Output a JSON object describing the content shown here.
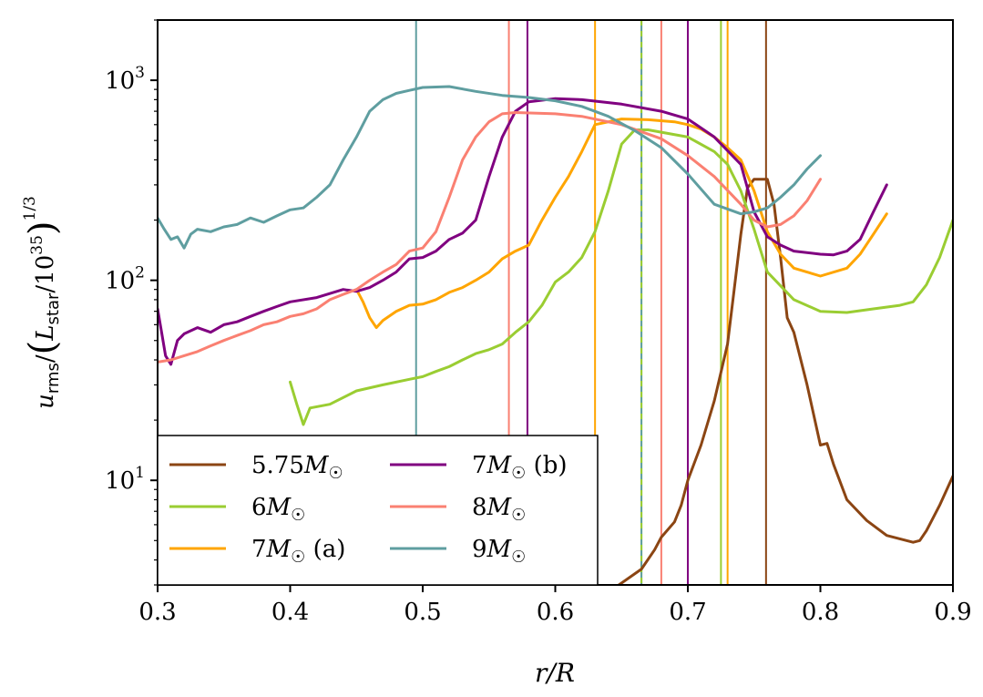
{
  "chart_data": {
    "type": "line",
    "title": "",
    "xlabel": "r/R",
    "ylabel": "u_rms/(L_star/10^35)^(1/3)",
    "xlim": [
      0.3,
      0.9
    ],
    "ylim": [
      3.0,
      2000
    ],
    "yscale": "log",
    "grid": false,
    "legend_position": "lower-left",
    "x_ticks": [
      0.3,
      0.4,
      0.5,
      0.6,
      0.7,
      0.8,
      0.9
    ],
    "x_tick_labels": [
      "0.3",
      "0.4",
      "0.5",
      "0.6",
      "0.7",
      "0.8",
      "0.9"
    ],
    "y_ticks": [
      10,
      100,
      1000
    ],
    "y_tick_labels": [
      "10",
      "10",
      "10"
    ],
    "y_tick_exponents": [
      "1",
      "2",
      "3"
    ],
    "series": [
      {
        "name": "5.75M☉",
        "label_main": "5.75",
        "color": "#8B4513",
        "boundaries": [
          0.759
        ],
        "x": [
          0.648,
          0.665,
          0.675,
          0.68,
          0.69,
          0.695,
          0.7,
          0.71,
          0.72,
          0.73,
          0.735,
          0.74,
          0.745,
          0.75,
          0.755,
          0.76,
          0.765,
          0.77,
          0.775,
          0.78,
          0.79,
          0.8,
          0.805,
          0.81,
          0.82,
          0.835,
          0.85,
          0.86,
          0.87,
          0.875,
          0.88,
          0.89,
          0.9
        ],
        "y": [
          3.0,
          3.6,
          4.5,
          5.2,
          6.2,
          7.5,
          10,
          15,
          25,
          48,
          90,
          170,
          290,
          320,
          320,
          320,
          240,
          130,
          65,
          55,
          30,
          15,
          15.3,
          12,
          8.0,
          6.3,
          5.3,
          5.1,
          4.9,
          5.0,
          5.6,
          7.5,
          10.5
        ]
      },
      {
        "name": "6M☉",
        "label_main": "6",
        "color": "#9ACD32",
        "boundaries": [
          0.665,
          0.725
        ],
        "x": [
          0.4,
          0.405,
          0.41,
          0.415,
          0.43,
          0.45,
          0.47,
          0.49,
          0.5,
          0.51,
          0.52,
          0.53,
          0.54,
          0.55,
          0.56,
          0.57,
          0.58,
          0.59,
          0.6,
          0.61,
          0.62,
          0.63,
          0.64,
          0.65,
          0.66,
          0.67,
          0.68,
          0.7,
          0.72,
          0.73,
          0.74,
          0.75,
          0.76,
          0.78,
          0.8,
          0.82,
          0.84,
          0.86,
          0.87,
          0.88,
          0.89,
          0.9
        ],
        "y": [
          31,
          24,
          19,
          23,
          24,
          28,
          30,
          32,
          33,
          35,
          37,
          40,
          43,
          45,
          48,
          55,
          62,
          75,
          98,
          110,
          130,
          175,
          280,
          480,
          565,
          565,
          550,
          520,
          440,
          380,
          280,
          180,
          110,
          80,
          70,
          69,
          72,
          75,
          78,
          95,
          130,
          200
        ]
      },
      {
        "name": "7M☉ (a)",
        "label_main": "7",
        "label_suffix": " (a)",
        "color": "#FFA500",
        "boundaries": [
          0.63,
          0.73
        ],
        "x": [
          0.45,
          0.455,
          0.46,
          0.465,
          0.47,
          0.48,
          0.49,
          0.5,
          0.51,
          0.52,
          0.53,
          0.54,
          0.55,
          0.56,
          0.57,
          0.58,
          0.59,
          0.6,
          0.61,
          0.62,
          0.63,
          0.65,
          0.67,
          0.69,
          0.7,
          0.71,
          0.72,
          0.73,
          0.74,
          0.75,
          0.76,
          0.77,
          0.78,
          0.8,
          0.82,
          0.83,
          0.84,
          0.85
        ],
        "y": [
          90,
          78,
          65,
          58,
          63,
          70,
          75,
          76,
          80,
          87,
          92,
          100,
          110,
          128,
          140,
          150,
          200,
          260,
          330,
          440,
          600,
          640,
          635,
          620,
          600,
          570,
          520,
          460,
          400,
          280,
          175,
          135,
          115,
          105,
          115,
          135,
          170,
          215
        ]
      },
      {
        "name": "7M☉ (b)",
        "label_main": "7",
        "label_suffix": " (b)",
        "color": "#800080",
        "boundaries": [
          0.579,
          0.7
        ],
        "x": [
          0.3,
          0.303,
          0.306,
          0.31,
          0.315,
          0.32,
          0.33,
          0.34,
          0.35,
          0.36,
          0.37,
          0.38,
          0.39,
          0.4,
          0.42,
          0.44,
          0.45,
          0.46,
          0.47,
          0.48,
          0.49,
          0.5,
          0.51,
          0.52,
          0.53,
          0.54,
          0.55,
          0.56,
          0.57,
          0.58,
          0.6,
          0.62,
          0.65,
          0.68,
          0.7,
          0.72,
          0.74,
          0.75,
          0.76,
          0.77,
          0.78,
          0.8,
          0.81,
          0.82,
          0.83,
          0.84,
          0.85
        ],
        "y": [
          72,
          55,
          42,
          38,
          50,
          54,
          58,
          55,
          60,
          62,
          66,
          70,
          74,
          78,
          82,
          90,
          88,
          92,
          100,
          110,
          128,
          130,
          140,
          160,
          172,
          200,
          330,
          520,
          700,
          780,
          810,
          800,
          760,
          700,
          640,
          520,
          380,
          220,
          165,
          150,
          140,
          135,
          134,
          140,
          160,
          220,
          300
        ]
      },
      {
        "name": "8M☉",
        "label_main": "8",
        "color": "#FA8072",
        "boundaries": [
          0.565,
          0.68
        ],
        "x": [
          0.3,
          0.31,
          0.32,
          0.33,
          0.34,
          0.35,
          0.36,
          0.37,
          0.38,
          0.39,
          0.4,
          0.41,
          0.42,
          0.43,
          0.44,
          0.45,
          0.46,
          0.47,
          0.48,
          0.49,
          0.5,
          0.51,
          0.52,
          0.53,
          0.54,
          0.55,
          0.56,
          0.57,
          0.6,
          0.62,
          0.65,
          0.68,
          0.7,
          0.72,
          0.74,
          0.75,
          0.76,
          0.77,
          0.78,
          0.79,
          0.8
        ],
        "y": [
          39,
          40,
          42,
          44,
          47,
          50,
          53,
          56,
          60,
          62,
          66,
          68,
          72,
          80,
          85,
          90,
          100,
          110,
          120,
          140,
          145,
          175,
          260,
          400,
          520,
          620,
          680,
          690,
          680,
          660,
          600,
          510,
          420,
          330,
          240,
          200,
          185,
          190,
          210,
          250,
          320
        ]
      },
      {
        "name": "9M☉",
        "label_main": "9",
        "color": "#5F9EA0",
        "boundaries": [
          0.495,
          0.665
        ],
        "x": [
          0.3,
          0.305,
          0.31,
          0.315,
          0.32,
          0.325,
          0.33,
          0.34,
          0.35,
          0.36,
          0.37,
          0.38,
          0.39,
          0.4,
          0.41,
          0.42,
          0.43,
          0.44,
          0.45,
          0.46,
          0.47,
          0.48,
          0.49,
          0.5,
          0.52,
          0.54,
          0.56,
          0.58,
          0.6,
          0.62,
          0.64,
          0.66,
          0.68,
          0.7,
          0.72,
          0.74,
          0.75,
          0.76,
          0.77,
          0.78,
          0.79,
          0.8
        ],
        "y": [
          205,
          180,
          160,
          165,
          145,
          170,
          180,
          175,
          185,
          190,
          205,
          195,
          210,
          225,
          230,
          260,
          300,
          400,
          520,
          700,
          800,
          860,
          890,
          920,
          930,
          880,
          840,
          820,
          790,
          740,
          660,
          560,
          460,
          340,
          240,
          215,
          220,
          230,
          260,
          300,
          360,
          420
        ]
      }
    ]
  }
}
